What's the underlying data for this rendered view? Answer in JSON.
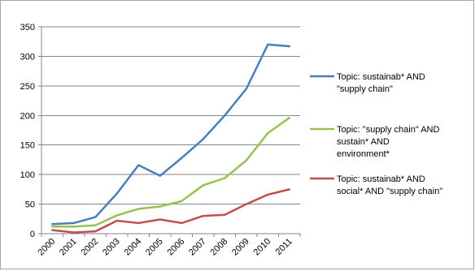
{
  "chart_data": {
    "type": "line",
    "title": "",
    "xlabel": "",
    "ylabel": "",
    "categories": [
      "2000",
      "2001",
      "2002",
      "2003",
      "2004",
      "2005",
      "2006",
      "2007",
      "2008",
      "2009",
      "2010",
      "2011"
    ],
    "ylim": [
      0,
      350
    ],
    "yticks": [
      0,
      50,
      100,
      150,
      200,
      250,
      300,
      350
    ],
    "grid": "horizontal",
    "legend_position": "right",
    "series": [
      {
        "name": "Topic: sustainab* AND \"supply chain\"",
        "legend_lines": [
          "Topic: sustainab* AND",
          "\"supply chain\""
        ],
        "color": "#4a7ebb",
        "values": [
          16,
          18,
          28,
          68,
          116,
          98,
          128,
          160,
          200,
          245,
          320,
          317
        ]
      },
      {
        "name": "Topic: \"supply chain\" AND sustain* AND environment*",
        "legend_lines": [
          "Topic: \"supply chain\" AND",
          "sustain* AND",
          "environment*"
        ],
        "color": "#98c152",
        "values": [
          12,
          12,
          14,
          31,
          42,
          46,
          55,
          82,
          94,
          124,
          170,
          196
        ]
      },
      {
        "name": "Topic: sustainab* AND social* AND \"supply chain\"",
        "legend_lines": [
          "Topic: sustainab* AND",
          "social* AND \"supply chain\""
        ],
        "color": "#c0504d",
        "values": [
          6,
          2,
          4,
          22,
          18,
          24,
          18,
          30,
          32,
          50,
          66,
          75
        ]
      }
    ]
  }
}
